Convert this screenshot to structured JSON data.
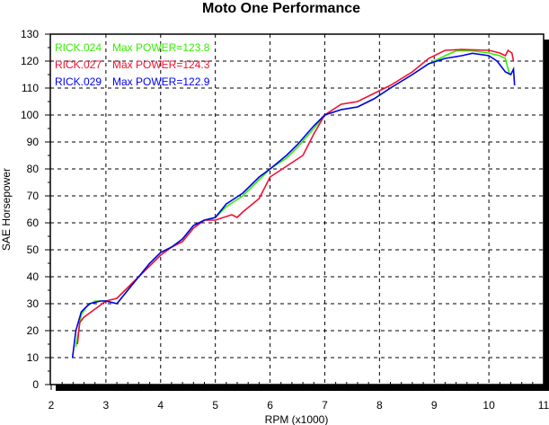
{
  "chart_data": {
    "type": "line",
    "title": "Moto One Performance",
    "xlabel": "RPM (x1000)",
    "ylabel": "SAE Horsepower",
    "xlim": [
      2,
      11
    ],
    "ylim": [
      0,
      130
    ],
    "xticks": [
      "2",
      "3",
      "4",
      "5",
      "6",
      "7",
      "8",
      "9",
      "10",
      "11"
    ],
    "yticks": [
      "0",
      "10",
      "20",
      "30",
      "40",
      "50",
      "60",
      "70",
      "80",
      "90",
      "100",
      "110",
      "120",
      "130"
    ],
    "grid": true,
    "legend_placement": "top-left",
    "series": [
      {
        "name": "RICK.024",
        "label": "Max POWER=123.8",
        "color": "#33ee00",
        "x": [
          2.45,
          2.5,
          2.55,
          2.65,
          2.8,
          3.0,
          3.2,
          3.4,
          3.6,
          3.8,
          4.0,
          4.2,
          4.4,
          4.6,
          4.8,
          5.0,
          5.2,
          5.5,
          5.8,
          6.0,
          6.3,
          6.5,
          6.8,
          7.0,
          7.3,
          7.6,
          7.9,
          8.2,
          8.6,
          8.9,
          9.2,
          9.4,
          9.7,
          10.0,
          10.2,
          10.3,
          10.38
        ],
        "y": [
          14,
          20,
          26,
          29,
          31,
          31,
          30,
          35,
          40,
          45,
          49,
          51,
          54,
          59,
          61,
          62,
          66,
          70,
          76,
          80,
          84,
          88,
          95,
          100,
          102,
          103,
          106,
          110,
          115,
          119,
          122,
          123.8,
          123.8,
          123,
          122,
          121,
          115
        ]
      },
      {
        "name": "RICK.027",
        "label": "Max POWER=124.3",
        "color": "#ee1133",
        "x": [
          2.48,
          2.52,
          2.6,
          2.8,
          3.0,
          3.2,
          3.4,
          3.6,
          3.8,
          4.0,
          4.2,
          4.4,
          4.6,
          4.8,
          5.0,
          5.3,
          5.4,
          5.5,
          5.8,
          6.0,
          6.3,
          6.6,
          6.8,
          7.0,
          7.3,
          7.6,
          7.9,
          8.2,
          8.6,
          8.9,
          9.2,
          9.5,
          10.0,
          10.2,
          10.3,
          10.35,
          10.42,
          10.45
        ],
        "y": [
          15,
          23,
          25,
          28,
          31,
          32,
          36,
          40,
          44,
          48,
          51,
          53,
          58,
          61,
          61,
          63,
          62,
          64,
          69,
          77,
          81,
          85,
          93,
          100,
          104,
          105,
          108,
          111,
          116,
          121,
          124,
          124.3,
          124,
          123,
          122,
          124,
          123,
          120
        ]
      },
      {
        "name": "RICK.029",
        "label": "Max POWER=122.9",
        "color": "#0000ee",
        "x": [
          2.39,
          2.45,
          2.55,
          2.7,
          2.9,
          3.0,
          3.2,
          3.4,
          3.6,
          3.8,
          4.0,
          4.2,
          4.4,
          4.6,
          4.8,
          5.0,
          5.2,
          5.5,
          5.8,
          6.0,
          6.3,
          6.5,
          6.8,
          7.0,
          7.3,
          7.6,
          7.9,
          8.2,
          8.6,
          8.9,
          9.2,
          9.5,
          9.7,
          10.0,
          10.15,
          10.3,
          10.4,
          10.45,
          10.47
        ],
        "y": [
          10,
          20,
          27,
          30,
          31,
          31,
          30,
          35,
          40,
          45,
          49,
          51,
          54,
          59,
          61,
          62,
          67,
          71,
          77,
          80,
          85,
          89,
          96,
          100,
          102,
          103,
          106,
          110,
          115,
          119,
          121,
          122,
          122.9,
          122,
          120,
          116,
          115,
          117,
          111
        ]
      }
    ]
  }
}
